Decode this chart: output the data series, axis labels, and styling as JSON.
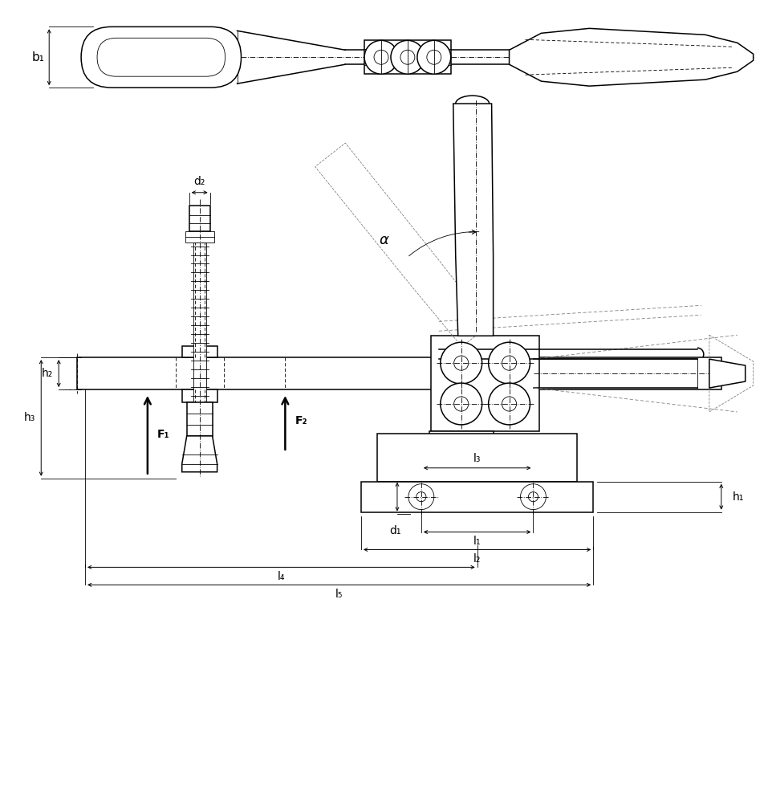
{
  "bg": "#ffffff",
  "lc": "#000000",
  "lw_thin": 0.6,
  "lw_med": 1.1,
  "lw_thick": 1.6,
  "dash": [
    5,
    3
  ],
  "dashdot": [
    8,
    2,
    1,
    2
  ],
  "dot": [
    2,
    2
  ],
  "labels": {
    "b1": "b₁",
    "h1": "h₁",
    "h2": "h₂",
    "h3": "h₃",
    "d1": "d₁",
    "d2": "d₂",
    "l1": "l₁",
    "l2": "l₂",
    "l3": "l₃",
    "l4": "l₄",
    "l5": "l₅",
    "F1": "F₁",
    "F2": "F₂",
    "alpha": "α"
  },
  "fs": 11,
  "fsd": 10
}
